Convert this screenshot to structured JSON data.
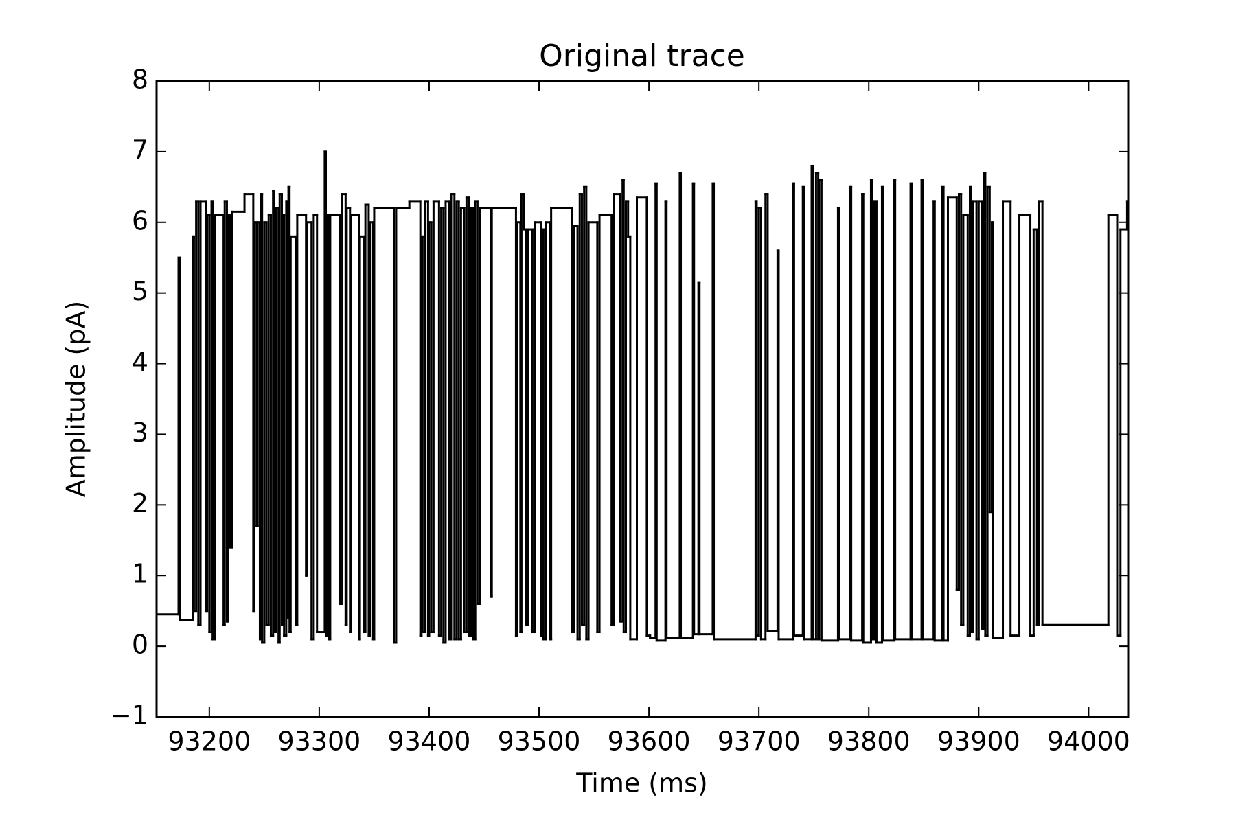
{
  "chart_data": {
    "type": "line",
    "drawstyle": "steps-post",
    "title": "Original trace",
    "x_label": "Time (ms)",
    "y_label": "Amplitude (pA)",
    "color": "#000000",
    "xlim": [
      93152,
      94036
    ],
    "ylim": [
      -1,
      8
    ],
    "xticks": [
      93200,
      93300,
      93400,
      93500,
      93600,
      93700,
      93800,
      93900,
      94000
    ],
    "yticks": [
      {
        "value": -1,
        "label": "−1"
      },
      0,
      1,
      2,
      3,
      4,
      5,
      6,
      7,
      8
    ],
    "x": [
      93152,
      93172,
      93173,
      93185,
      93186,
      93188,
      93190,
      93192,
      93197,
      93198,
      93200,
      93202,
      93203,
      93205,
      93213,
      93214,
      93216,
      93217,
      93219,
      93221,
      93232,
      93240,
      93241,
      93243,
      93244,
      93246,
      93247,
      93248,
      93250,
      93252,
      93254,
      93256,
      93258,
      93259,
      93261,
      93263,
      93264,
      93266,
      93267,
      93268,
      93270,
      93271,
      93272,
      93273,
      93274,
      93279,
      93280,
      93288,
      93289,
      93293,
      93295,
      93298,
      93305,
      93306,
      93307,
      93309,
      93310,
      93319,
      93321,
      93324,
      93325,
      93328,
      93329,
      93336,
      93337,
      93341,
      93342,
      93345,
      93346,
      93349,
      93350,
      93368,
      93370,
      93382,
      93392,
      93393,
      93394,
      93396,
      93399,
      93400,
      93402,
      93404,
      93409,
      93411,
      93413,
      93415,
      93418,
      93420,
      93423,
      93425,
      93427,
      93429,
      93432,
      93434,
      93436,
      93438,
      93440,
      93442,
      93444,
      93446,
      93456,
      93457,
      93479,
      93480,
      93483,
      93484,
      93486,
      93488,
      93490,
      93494,
      93496,
      93502,
      93503,
      93504,
      93506,
      93510,
      93511,
      93530,
      93532,
      93535,
      93537,
      93539,
      93541,
      93543,
      93545,
      93553,
      93555,
      93566,
      93568,
      93574,
      93576,
      93577,
      93579,
      93581,
      93583,
      93589,
      93598,
      93601,
      93606,
      93607,
      93615,
      93616,
      93628,
      93629,
      93640,
      93641,
      93645,
      93646,
      93658,
      93659,
      93697,
      93698,
      93700,
      93702,
      93706,
      93708,
      93717,
      93718,
      93731,
      93732,
      93740,
      93741,
      93748,
      93749,
      93752,
      93754,
      93755,
      93757,
      93772,
      93773,
      93783,
      93784,
      93794,
      93795,
      93802,
      93803,
      93805,
      93807,
      93812,
      93813,
      93823,
      93824,
      93838,
      93839,
      93848,
      93849,
      93859,
      93860,
      93867,
      93868,
      93872,
      93880,
      93882,
      93884,
      93886,
      93890,
      93892,
      93893,
      93895,
      93898,
      93900,
      93903,
      93905,
      93906,
      93908,
      93910,
      93912,
      93913,
      93922,
      93929,
      93937,
      93947,
      93950,
      93953,
      93955,
      93958,
      94018,
      94026,
      94029,
      94035
    ],
    "values": [
      0.45,
      5.5,
      0.37,
      5.8,
      0.5,
      6.3,
      0.3,
      6.3,
      0.5,
      6.1,
      0.2,
      6.3,
      0.1,
      6.1,
      0.3,
      6.3,
      0.35,
      6.1,
      1.4,
      6.15,
      6.4,
      0.5,
      6.0,
      1.7,
      6.0,
      0.1,
      6.4,
      0.05,
      6.0,
      0.3,
      6.1,
      0.15,
      6.45,
      0.2,
      6.2,
      0.05,
      6.4,
      0.3,
      6.1,
      0.15,
      6.3,
      0.4,
      6.5,
      0.2,
      5.8,
      0.3,
      6.1,
      1.0,
      6.0,
      0.1,
      6.1,
      0.2,
      7.0,
      0.15,
      6.1,
      0.1,
      6.1,
      0.6,
      6.4,
      0.3,
      6.2,
      0.2,
      6.1,
      0.1,
      5.8,
      0.2,
      6.25,
      0.15,
      6.0,
      0.1,
      6.2,
      0.05,
      6.2,
      6.3,
      0.15,
      5.8,
      0.2,
      6.3,
      0.15,
      6.0,
      0.2,
      6.3,
      0.15,
      6.2,
      0.05,
      6.3,
      0.1,
      6.4,
      0.1,
      6.3,
      0.1,
      6.2,
      0.2,
      6.35,
      0.15,
      6.2,
      0.1,
      6.3,
      0.6,
      6.2,
      0.7,
      6.2,
      0.15,
      6.0,
      0.2,
      6.4,
      5.9,
      0.3,
      5.9,
      0.2,
      6.0,
      0.15,
      5.9,
      0.1,
      6.0,
      0.1,
      6.2,
      0.2,
      5.95,
      0.1,
      6.4,
      0.3,
      6.5,
      0.1,
      6.0,
      0.2,
      6.1,
      0.3,
      6.4,
      0.35,
      6.6,
      0.2,
      6.3,
      5.8,
      0.1,
      6.35,
      0.15,
      0.12,
      6.55,
      0.08,
      6.3,
      0.12,
      6.7,
      0.12,
      6.55,
      0.17,
      5.15,
      0.17,
      6.55,
      0.1,
      6.3,
      0.15,
      6.2,
      0.1,
      6.4,
      0.22,
      5.6,
      0.1,
      6.55,
      0.15,
      6.5,
      0.1,
      6.8,
      0.1,
      6.7,
      0.1,
      6.6,
      0.08,
      6.2,
      0.1,
      6.5,
      0.08,
      6.4,
      0.05,
      6.6,
      0.1,
      6.3,
      0.05,
      6.5,
      0.08,
      6.6,
      0.1,
      6.55,
      0.1,
      6.6,
      0.1,
      6.3,
      0.08,
      6.5,
      0.08,
      6.35,
      0.8,
      6.4,
      0.3,
      6.1,
      0.15,
      6.5,
      0.2,
      6.3,
      0.1,
      6.3,
      0.25,
      6.7,
      0.15,
      6.5,
      1.9,
      6.0,
      0.12,
      6.3,
      0.15,
      6.1,
      0.15,
      5.9,
      0.3,
      6.3,
      0.3,
      6.1,
      0.15,
      5.9,
      6.3
    ]
  }
}
